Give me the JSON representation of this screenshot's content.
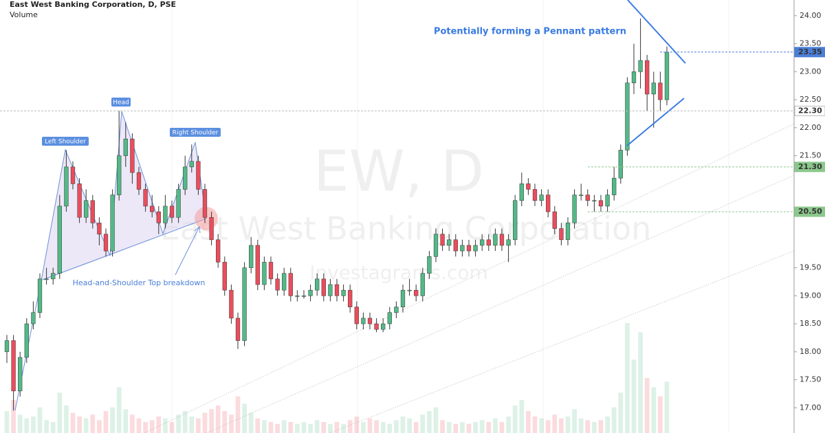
{
  "chart_data": {
    "type": "candlestick",
    "title": "East West Banking Corporation, D, PSE",
    "subtitle": "Volume",
    "watermark": [
      "EW, D",
      "East West Banking Corporation",
      "Investagrams.com"
    ],
    "annotations": [
      "Left Shoulder",
      "Head",
      "Right Shoulder",
      "Head-and-Shoulder Top breakdown",
      "Potentially forming a Pennant pattern"
    ],
    "up_color": "#53b987",
    "down_color": "#eb4d5c",
    "open": [
      18.0,
      18.2,
      17.3,
      17.9,
      18.5,
      18.7,
      19.3,
      19.3,
      19.4,
      20.6,
      21.3,
      21.0,
      20.4,
      20.7,
      20.3,
      20.1,
      19.8,
      20.8,
      21.5,
      21.8,
      21.2,
      20.9,
      20.6,
      20.5,
      20.3,
      20.6,
      20.4,
      20.9,
      21.3,
      21.4,
      20.9,
      20.4,
      20.0,
      19.6,
      19.1,
      18.6,
      18.2,
      19.5,
      19.9,
      19.2,
      19.6,
      19.3,
      19.1,
      19.4,
      19.0,
      19.0,
      19.0,
      19.1,
      19.3,
      19.0,
      19.2,
      19.0,
      19.1,
      18.8,
      18.5,
      18.6,
      18.5,
      18.4,
      18.5,
      18.7,
      18.8,
      19.1,
      19.1,
      19.0,
      19.4,
      19.7,
      20.1,
      19.9,
      20.0,
      19.8,
      19.9,
      19.8,
      19.9,
      20.0,
      19.9,
      20.1,
      19.9,
      20.0,
      20.7,
      21.0,
      20.9,
      20.7,
      20.8,
      20.5,
      20.2,
      20.0,
      20.3,
      20.8,
      20.8,
      20.7,
      20.7,
      20.6,
      20.8,
      21.1,
      21.6,
      22.8,
      23.0,
      23.2,
      22.6,
      22.8,
      22.5
    ],
    "high": [
      18.3,
      18.3,
      18.0,
      18.6,
      18.9,
      19.4,
      19.5,
      19.5,
      20.8,
      21.6,
      21.4,
      21.1,
      20.9,
      20.8,
      20.4,
      20.2,
      20.9,
      22.3,
      22.1,
      21.9,
      21.3,
      21.0,
      20.8,
      20.6,
      20.8,
      20.7,
      21.0,
      21.5,
      21.7,
      21.5,
      21.0,
      20.5,
      20.1,
      19.7,
      19.2,
      18.7,
      19.6,
      20.05,
      20.0,
      19.7,
      19.7,
      19.4,
      19.5,
      19.5,
      19.1,
      19.1,
      19.2,
      19.4,
      19.4,
      19.3,
      19.3,
      19.2,
      19.2,
      18.9,
      18.7,
      18.7,
      18.6,
      18.6,
      18.8,
      18.9,
      19.2,
      19.3,
      19.2,
      19.5,
      19.8,
      20.2,
      20.2,
      20.1,
      20.1,
      20.0,
      20.0,
      20.0,
      20.1,
      20.1,
      20.2,
      20.2,
      20.1,
      20.8,
      21.2,
      21.1,
      21.0,
      20.9,
      20.9,
      20.6,
      20.3,
      20.4,
      20.9,
      21.0,
      20.9,
      20.8,
      20.8,
      20.9,
      21.3,
      21.7,
      22.9,
      23.5,
      23.95,
      23.3,
      23.0,
      23.0,
      23.45
    ],
    "low": [
      17.8,
      16.95,
      17.2,
      17.8,
      18.4,
      18.6,
      19.2,
      19.2,
      19.3,
      20.5,
      20.9,
      20.3,
      20.3,
      20.2,
      19.9,
      19.7,
      19.7,
      20.7,
      21.3,
      21.0,
      20.8,
      20.5,
      20.4,
      20.1,
      20.2,
      20.3,
      20.3,
      20.8,
      21.2,
      20.8,
      20.3,
      19.9,
      19.5,
      19.0,
      18.5,
      18.05,
      18.1,
      19.4,
      19.1,
      19.1,
      19.2,
      19.0,
      19.0,
      18.9,
      18.9,
      18.95,
      18.9,
      19.0,
      18.9,
      18.9,
      18.9,
      18.9,
      18.7,
      18.4,
      18.4,
      18.4,
      18.35,
      18.35,
      18.4,
      18.6,
      18.7,
      19.0,
      18.9,
      18.9,
      19.3,
      19.6,
      19.8,
      19.8,
      19.7,
      19.7,
      19.7,
      19.7,
      19.8,
      19.8,
      19.8,
      19.8,
      19.6,
      19.9,
      20.6,
      20.8,
      20.6,
      20.6,
      20.4,
      20.1,
      19.9,
      19.9,
      20.2,
      20.7,
      20.6,
      20.5,
      20.5,
      20.5,
      20.7,
      21.0,
      21.5,
      22.6,
      22.7,
      22.3,
      22.0,
      22.3,
      22.4
    ],
    "close": [
      18.2,
      17.3,
      17.9,
      18.5,
      18.7,
      19.3,
      19.3,
      19.4,
      20.6,
      21.3,
      21.0,
      20.4,
      20.7,
      20.3,
      20.1,
      19.8,
      20.8,
      21.5,
      21.8,
      21.2,
      20.9,
      20.6,
      20.5,
      20.3,
      20.6,
      20.4,
      20.9,
      21.3,
      21.4,
      20.9,
      20.4,
      20.0,
      19.6,
      19.1,
      18.6,
      18.2,
      19.5,
      19.9,
      19.2,
      19.6,
      19.3,
      19.1,
      19.4,
      19.0,
      19.0,
      19.0,
      19.1,
      19.3,
      19.0,
      19.2,
      19.0,
      19.1,
      18.8,
      18.5,
      18.6,
      18.5,
      18.4,
      18.5,
      18.7,
      18.8,
      19.1,
      19.1,
      19.0,
      19.4,
      19.7,
      20.1,
      19.9,
      20.0,
      19.8,
      19.9,
      19.8,
      19.9,
      20.0,
      19.9,
      20.1,
      19.9,
      20.0,
      20.7,
      21.0,
      20.9,
      20.7,
      20.8,
      20.5,
      20.2,
      20.0,
      20.3,
      20.8,
      20.8,
      20.7,
      20.7,
      20.6,
      20.8,
      21.1,
      21.6,
      22.8,
      23.0,
      23.2,
      22.6,
      22.8,
      22.5,
      23.35
    ],
    "volume": [
      12,
      18,
      10,
      8,
      9,
      14,
      7,
      6,
      22,
      15,
      11,
      9,
      8,
      10,
      7,
      12,
      14,
      25,
      13,
      10,
      8,
      6,
      7,
      9,
      8,
      6,
      10,
      12,
      9,
      8,
      11,
      13,
      15,
      12,
      10,
      20,
      16,
      11,
      8,
      7,
      6,
      5,
      7,
      6,
      5,
      6,
      5,
      7,
      6,
      5,
      6,
      5,
      7,
      9,
      6,
      8,
      7,
      6,
      5,
      7,
      9,
      8,
      6,
      10,
      12,
      14,
      7,
      6,
      5,
      6,
      5,
      6,
      7,
      6,
      8,
      6,
      9,
      15,
      18,
      12,
      9,
      8,
      7,
      10,
      8,
      9,
      13,
      8,
      7,
      6,
      7,
      9,
      14,
      22,
      60,
      40,
      55,
      30,
      25,
      20,
      28
    ],
    "ylim": [
      16.55,
      24.28
    ],
    "yticks": [
      {
        "value": 17,
        "label": "17.00"
      },
      {
        "value": 17.5,
        "label": "17.50"
      },
      {
        "value": 18,
        "label": "18.00"
      },
      {
        "value": 18.5,
        "label": "18.50"
      },
      {
        "value": 19,
        "label": "19.00"
      },
      {
        "value": 19.5,
        "label": "19.50"
      },
      {
        "value": 20.5,
        "label": "20.50"
      },
      {
        "value": 21.5,
        "label": "21.50"
      },
      {
        "value": 22,
        "label": "22.00"
      },
      {
        "value": 22.5,
        "label": "22.50"
      },
      {
        "value": 23,
        "label": "23.00"
      },
      {
        "value": 23.5,
        "label": "23.50"
      },
      {
        "value": 24,
        "label": "24.00"
      }
    ],
    "price_markers": [
      {
        "value": 23.35,
        "label": "23.35",
        "color": "#4a7fd8"
      },
      {
        "value": 22.3,
        "label": "22.30",
        "color": "#bbbbbb"
      },
      {
        "value": 21.3,
        "label": "21.30",
        "color": "#8cc88c"
      },
      {
        "value": 20.5,
        "label": "20.50",
        "color": "#8cc88c"
      }
    ]
  }
}
